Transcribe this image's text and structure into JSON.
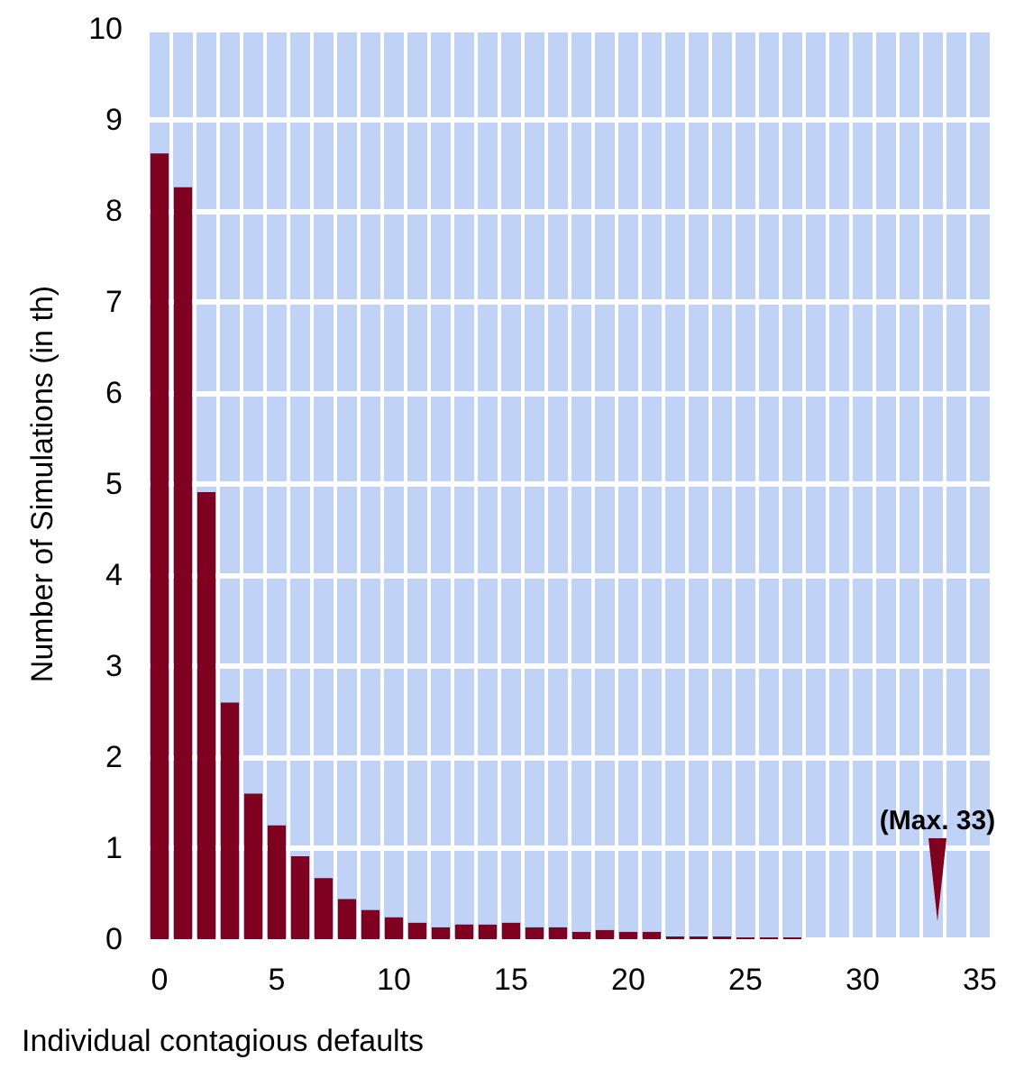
{
  "chart_data": {
    "type": "bar",
    "xlabel": "Individual contagious defaults",
    "ylabel": "Number of Simulations (in th)",
    "categories": [
      "0",
      null,
      null,
      null,
      null,
      "5",
      null,
      null,
      null,
      null,
      "10",
      null,
      null,
      null,
      null,
      "15",
      null,
      null,
      null,
      null,
      "20",
      null,
      null,
      null,
      null,
      "25",
      null,
      null,
      null,
      null,
      "30",
      null,
      null,
      null,
      null,
      "35"
    ],
    "values": [
      8.63,
      8.26,
      4.91,
      2.6,
      1.6,
      1.25,
      0.91,
      0.67,
      0.44,
      0.32,
      0.24,
      0.18,
      0.13,
      0.16,
      0.16,
      0.18,
      0.13,
      0.13,
      0.08,
      0.1,
      0.08,
      0.08,
      0.03,
      0.03,
      0.03,
      0.02,
      0.02,
      0.02,
      null,
      null,
      null,
      null,
      null,
      null,
      null,
      null
    ],
    "color": "#800020",
    "ylim": [
      0,
      10
    ],
    "yticks": [
      0,
      1,
      2,
      3,
      4,
      5,
      6,
      7,
      8,
      9,
      10
    ],
    "grid": true,
    "annotations": [
      "(Max. 33)"
    ]
  }
}
